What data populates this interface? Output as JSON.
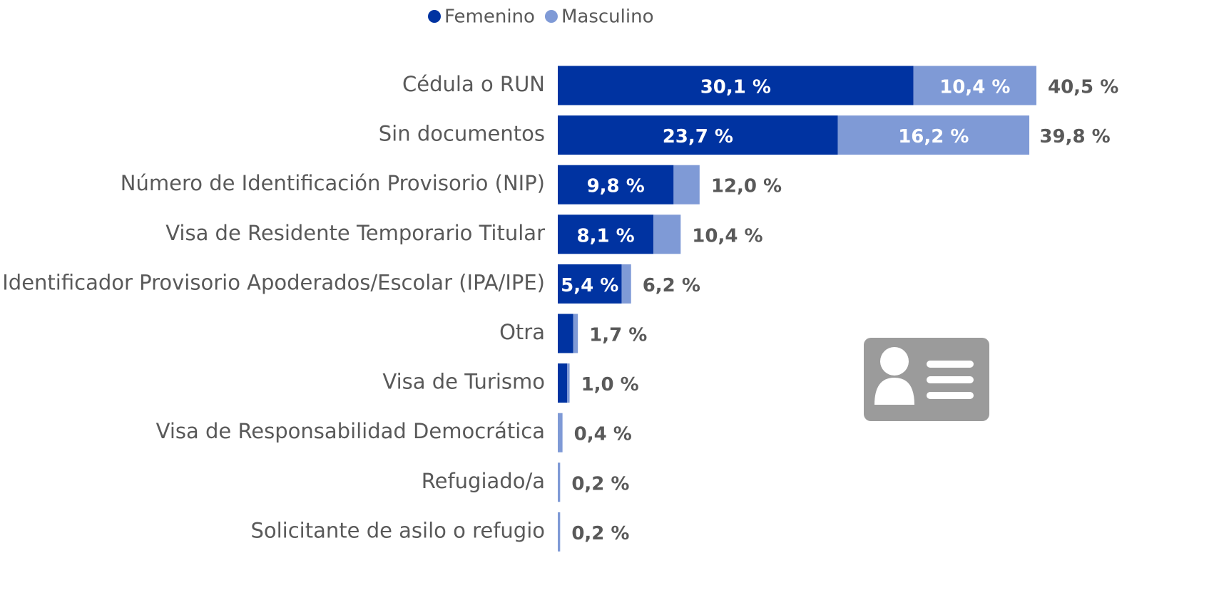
{
  "chart_data": {
    "type": "stacked-bar-horizontal",
    "categories": [
      "Cédula o RUN",
      "Sin documentos",
      "Número de Identificación Provisorio (NIP)",
      "Visa de Residente Temporario Titular",
      "Identificador Provisorio Apoderados/Escolar (IPA/IPE)",
      "Otra",
      "Visa de Turismo",
      "Visa de Responsabilidad Democrática",
      "Refugiado/a",
      "Solicitante de asilo o refugio"
    ],
    "series": [
      {
        "name": "Femenino",
        "color": "#0033a1",
        "values": [
          30.1,
          23.7,
          9.8,
          8.1,
          5.4,
          1.3,
          0.8,
          0,
          0,
          0
        ],
        "value_labels": [
          "30,1 %",
          "23,7 %",
          "9,8 %",
          "8,1 %",
          "5,4 %",
          null,
          null,
          null,
          null,
          null
        ]
      },
      {
        "name": "Masculino",
        "color": "#7f9ad6",
        "values": [
          10.4,
          16.2,
          2.2,
          2.3,
          0.8,
          0.4,
          0.2,
          0.4,
          0.2,
          0.2
        ],
        "value_labels": [
          "10,4 %",
          "16,2 %",
          null,
          null,
          null,
          null,
          null,
          null,
          null,
          null
        ]
      }
    ],
    "totals": {
      "values": [
        40.5,
        39.8,
        12.0,
        10.4,
        6.2,
        1.7,
        1.0,
        0.4,
        0.2,
        0.2
      ],
      "value_labels": [
        "40,5 %",
        "39,8 %",
        "12,0 %",
        "10,4 %",
        "6,2 %",
        "1,7 %",
        "1,0 %",
        "0,4 %",
        "0,2 %",
        "0,2 %"
      ]
    },
    "legend": "top"
  }
}
